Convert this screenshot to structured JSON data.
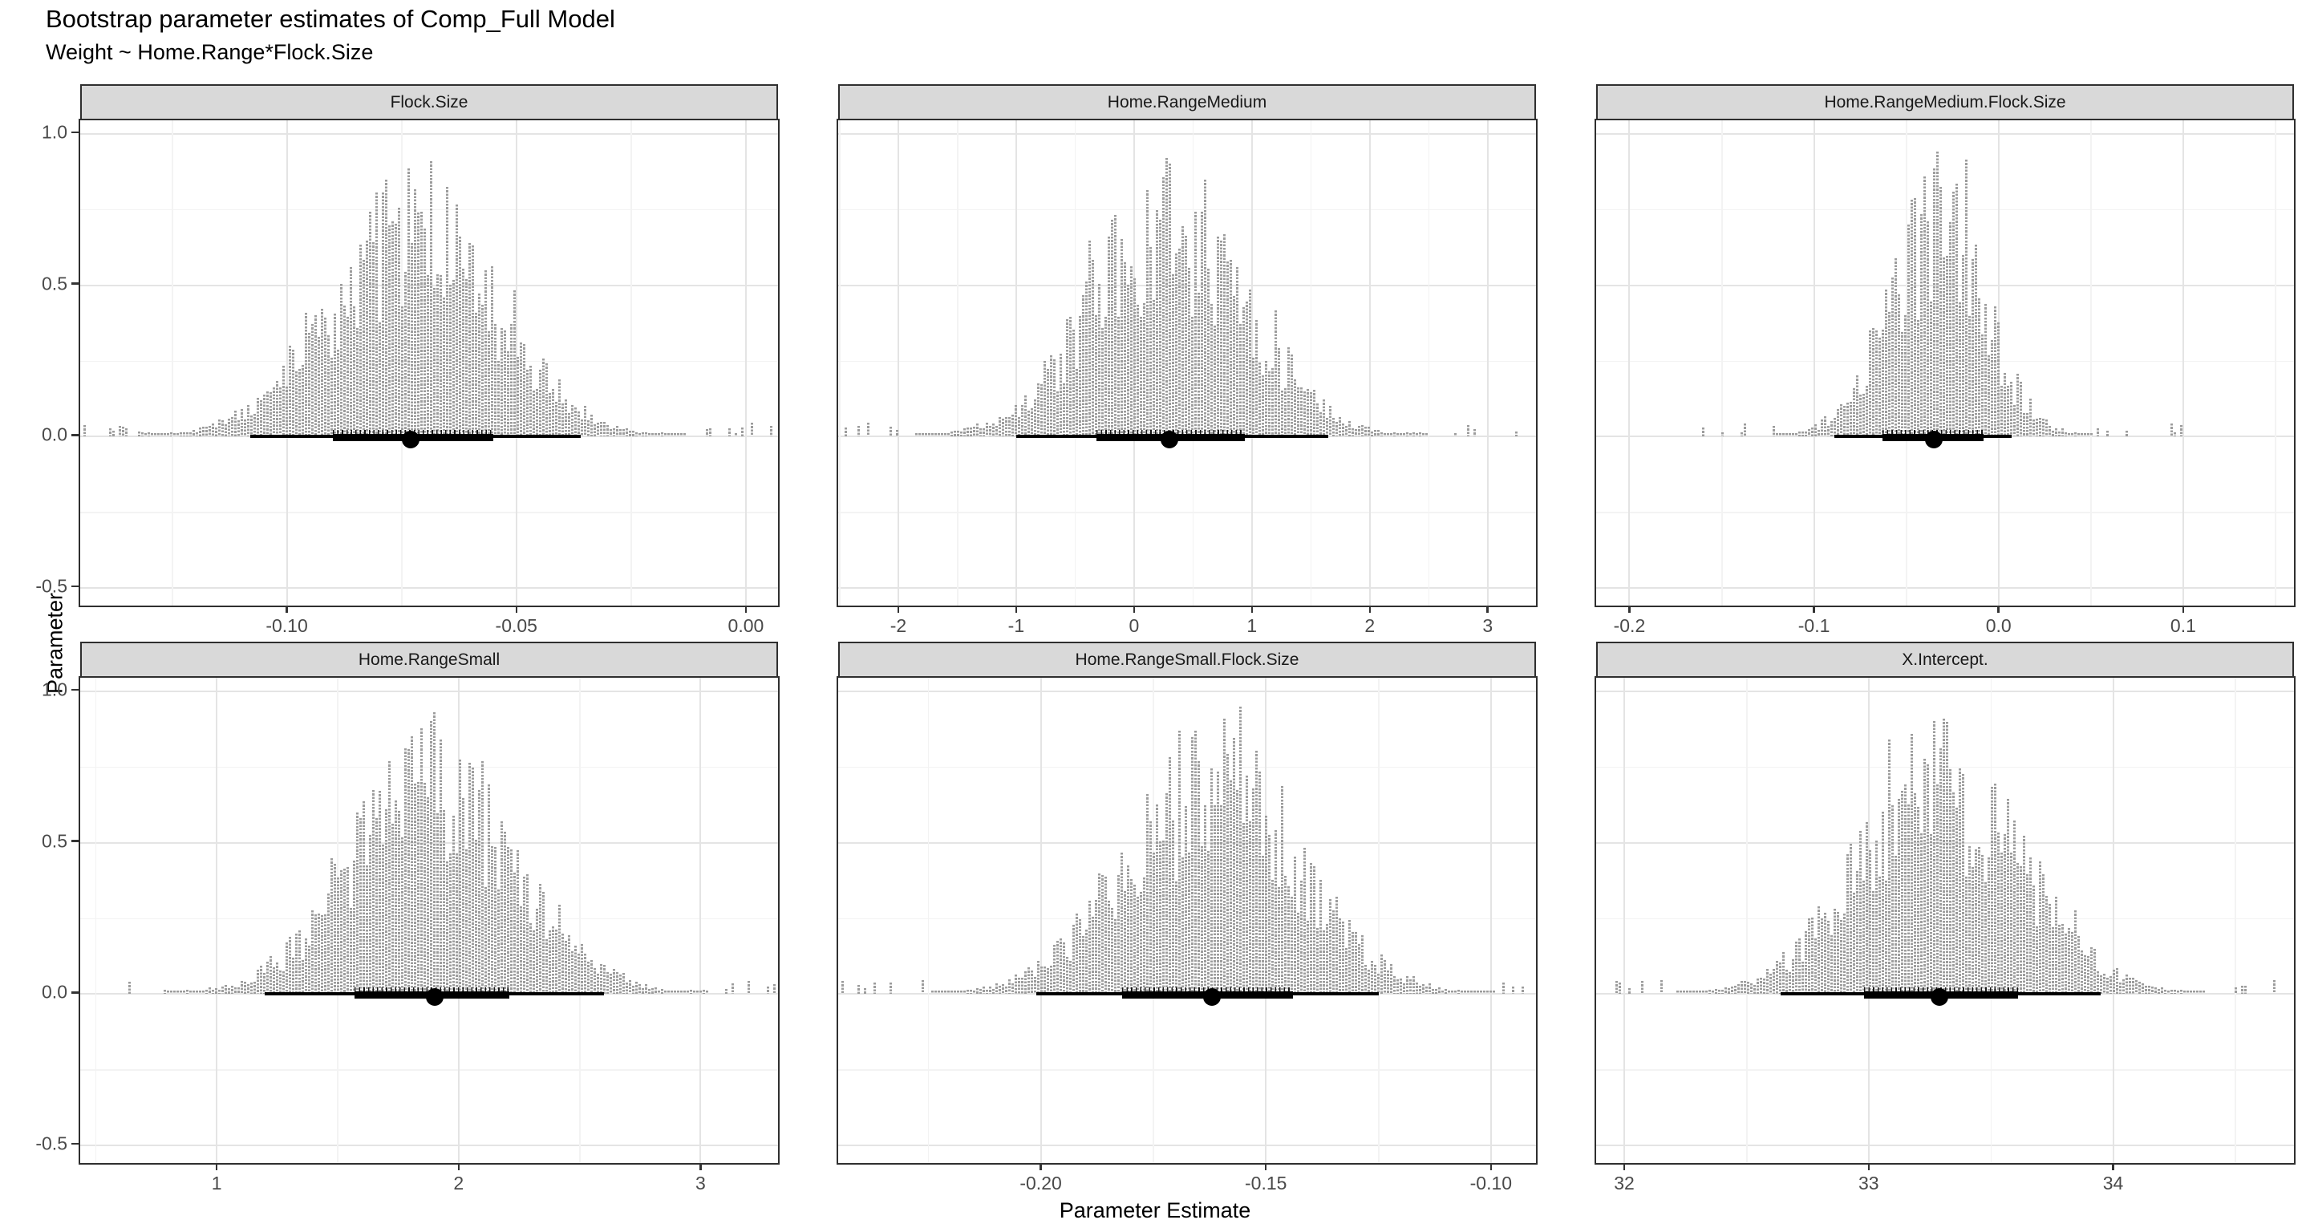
{
  "title": "Bootstrap parameter estimates of Comp_Full Model",
  "subtitle": "Weight ~ Home.Range*Flock.Size",
  "chart_data": {
    "type": "bar",
    "variant": "faceted-bootstrap-histograms",
    "title": "Bootstrap parameter estimates of Comp_Full Model",
    "subtitle": "Weight ~ Home.Range*Flock.Size",
    "x_label": "Parameter Estimate",
    "y_label": "Parameter",
    "grid": "on",
    "legend": "none",
    "y_ticks": [
      {
        "value": 1.0,
        "label": "1.0"
      },
      {
        "value": 0.5,
        "label": "0.5"
      },
      {
        "value": 0.0,
        "label": "0.0"
      },
      {
        "value": -0.5,
        "label": "-0.5"
      }
    ],
    "y_minor_ticks": [
      0.75,
      0.25,
      -0.25
    ],
    "y_range": [
      -0.558,
      1.045
    ],
    "histogram_peak_density": 0.9,
    "facets": [
      {
        "label": "Flock.Size",
        "x_range": [
          -0.145,
          0.007
        ],
        "x_ticks": [
          {
            "value": -0.1,
            "label": "-0.10"
          },
          {
            "value": -0.05,
            "label": "-0.05"
          },
          {
            "value": 0.0,
            "label": "0.00"
          }
        ],
        "estimate": -0.073,
        "inner_interval": [
          -0.09,
          -0.055
        ],
        "outer_interval": [
          -0.108,
          -0.036
        ],
        "sd": 0.018,
        "seed": 101
      },
      {
        "label": "Home.RangeMedium",
        "x_range": [
          -2.51,
          3.41
        ],
        "x_ticks": [
          {
            "value": -2,
            "label": "-2"
          },
          {
            "value": -1,
            "label": "-1"
          },
          {
            "value": 0,
            "label": "0"
          },
          {
            "value": 1,
            "label": "1"
          },
          {
            "value": 2,
            "label": "2"
          },
          {
            "value": 3,
            "label": "3"
          }
        ],
        "estimate": 0.3,
        "inner_interval": [
          -0.32,
          0.94
        ],
        "outer_interval": [
          -1.0,
          1.65
        ],
        "sd": 0.66,
        "seed": 202
      },
      {
        "label": "Home.RangeMedium.Flock.Size",
        "x_range": [
          -0.218,
          0.16
        ],
        "x_ticks": [
          {
            "value": -0.2,
            "label": "-0.2"
          },
          {
            "value": -0.1,
            "label": "-0.1"
          },
          {
            "value": 0.0,
            "label": "0.0"
          },
          {
            "value": 0.1,
            "label": "0.1"
          }
        ],
        "estimate": -0.035,
        "inner_interval": [
          -0.063,
          -0.008
        ],
        "outer_interval": [
          -0.089,
          0.007
        ],
        "sd": 0.026,
        "seed": 303
      },
      {
        "label": "Home.RangeSmall",
        "x_range": [
          0.436,
          3.32
        ],
        "x_ticks": [
          {
            "value": 1,
            "label": "1"
          },
          {
            "value": 2,
            "label": "2"
          },
          {
            "value": 3,
            "label": "3"
          }
        ],
        "estimate": 1.9,
        "inner_interval": [
          1.57,
          2.21
        ],
        "outer_interval": [
          1.2,
          2.6
        ],
        "sd": 0.34,
        "seed": 404
      },
      {
        "label": "Home.RangeSmall.Flock.Size",
        "x_range": [
          -0.245,
          -0.09
        ],
        "x_ticks": [
          {
            "value": -0.2,
            "label": "-0.20"
          },
          {
            "value": -0.15,
            "label": "-0.15"
          },
          {
            "value": -0.1,
            "label": "-0.10"
          }
        ],
        "estimate": -0.162,
        "inner_interval": [
          -0.182,
          -0.144
        ],
        "outer_interval": [
          -0.201,
          -0.125
        ],
        "sd": 0.019,
        "seed": 505
      },
      {
        "label": "X.Intercept.",
        "x_range": [
          31.885,
          34.74
        ],
        "x_ticks": [
          {
            "value": 32,
            "label": "32"
          },
          {
            "value": 33,
            "label": "33"
          },
          {
            "value": 34,
            "label": "34"
          }
        ],
        "estimate": 33.29,
        "inner_interval": [
          32.98,
          33.61
        ],
        "outer_interval": [
          32.64,
          33.95
        ],
        "sd": 0.33,
        "seed": 606
      }
    ]
  },
  "colors": {
    "histogram_bar": "#9c9c9c",
    "pointrange": "#000000",
    "strip_background": "#d9d9d9",
    "panel_border": "#2f2f2f",
    "grid_major": "#e4e4e4",
    "grid_minor": "#f3f3f3",
    "tick_text": "#4a4a4a"
  }
}
